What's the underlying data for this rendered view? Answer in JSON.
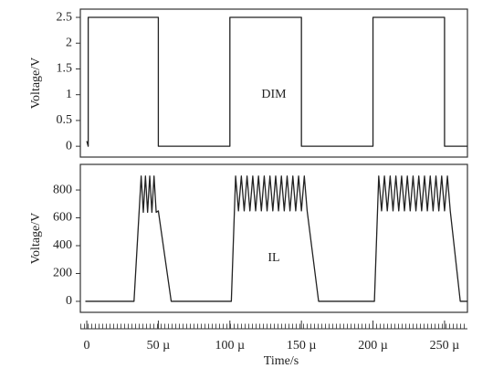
{
  "chart_data": [
    {
      "type": "line",
      "y_label": "Voltage/V",
      "annotation": "DIM",
      "x": [
        0,
        1,
        1,
        50,
        50,
        100,
        100,
        150,
        150,
        200,
        200,
        250,
        250,
        266
      ],
      "series": [
        {
          "color": "#222222",
          "values": [
            0.1,
            0,
            2.5,
            2.5,
            0,
            0,
            2.5,
            2.5,
            0,
            0,
            2.5,
            2.5,
            0,
            0
          ]
        }
      ],
      "xlim": [
        -4.5,
        266
      ],
      "ylim": [
        -0.21,
        2.66
      ],
      "yticks": [
        0,
        0.5,
        1,
        1.5,
        2,
        2.5
      ]
    },
    {
      "type": "line",
      "y_label": "Voltage/V",
      "x_label": "Time/s",
      "annotation": "IL",
      "x": [
        -1,
        33,
        38,
        39.5,
        41,
        42.5,
        44,
        45.5,
        47,
        48.5,
        50,
        59,
        101,
        104,
        106,
        108,
        110,
        112,
        114,
        116,
        118,
        120,
        122,
        124,
        126,
        128,
        130,
        132,
        134,
        136,
        138,
        140,
        142,
        144,
        146,
        148,
        150,
        152,
        154,
        162,
        201,
        204,
        206,
        208,
        210,
        212,
        214,
        216,
        218,
        220,
        222,
        224,
        226,
        228,
        230,
        232,
        234,
        236,
        238,
        240,
        242,
        244,
        246,
        248,
        250,
        252,
        254,
        261,
        266
      ],
      "series": [
        {
          "color": "#222222",
          "values": [
            0,
            0,
            900,
            640,
            900,
            640,
            900,
            640,
            900,
            640,
            650,
            0,
            0,
            900,
            650,
            900,
            650,
            900,
            650,
            900,
            650,
            900,
            650,
            900,
            650,
            900,
            650,
            900,
            650,
            900,
            650,
            900,
            650,
            900,
            650,
            900,
            650,
            900,
            650,
            0,
            0,
            900,
            650,
            900,
            650,
            900,
            650,
            900,
            650,
            900,
            650,
            900,
            650,
            900,
            650,
            900,
            650,
            900,
            650,
            900,
            650,
            900,
            650,
            900,
            650,
            900,
            650,
            0,
            0
          ]
        }
      ],
      "xlim": [
        -4.5,
        266
      ],
      "ylim": [
        -79,
        984
      ],
      "yticks": [
        0,
        200,
        400,
        600,
        800
      ],
      "xticks": [
        0,
        {
          "value": 50,
          "label": "50 µ"
        },
        {
          "value": 100,
          "label": "100 µ"
        },
        {
          "value": 150,
          "label": "150 µ"
        },
        {
          "value": 200,
          "label": "200 µ"
        },
        {
          "value": 250,
          "label": "250 µ"
        }
      ]
    }
  ]
}
